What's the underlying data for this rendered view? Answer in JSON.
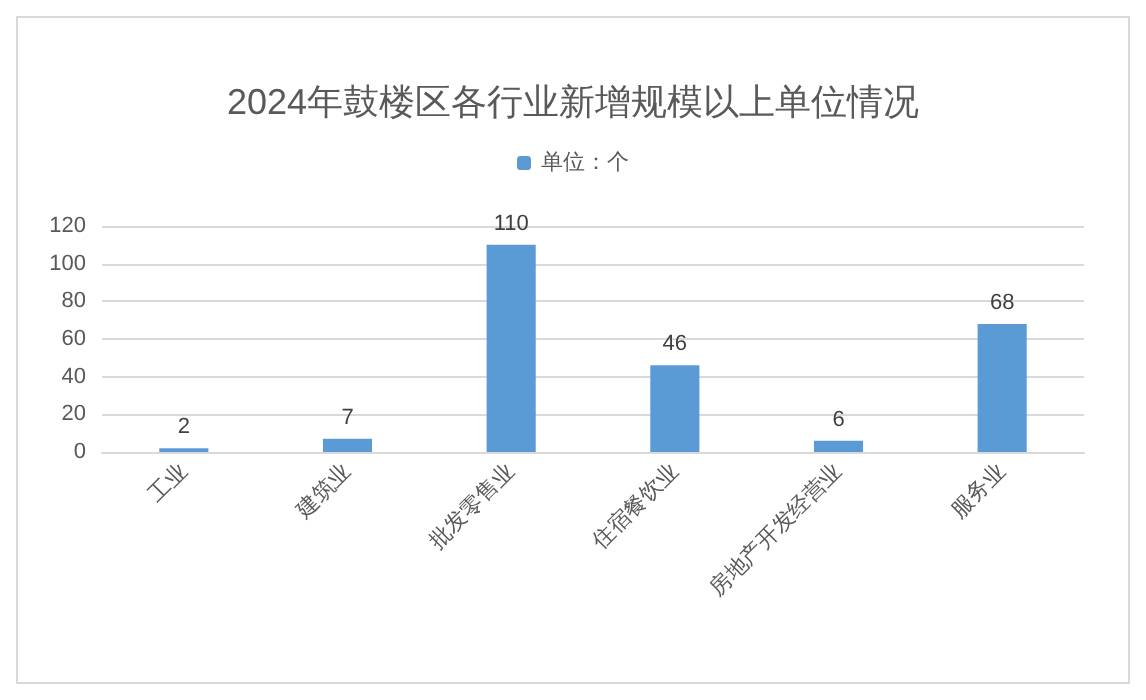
{
  "chart_data": {
    "type": "bar",
    "title": "2024年鼓楼区各行业新增规模以上单位情况",
    "categories": [
      "工业",
      "建筑业",
      "批发零售业",
      "住宿餐饮业",
      "房地产开发经营业",
      "服务业"
    ],
    "series": [
      {
        "name": "单位：个",
        "color": "#5b9bd5",
        "values": [
          2,
          7,
          110,
          46,
          6,
          68
        ]
      }
    ],
    "ylim": [
      0,
      120
    ],
    "yticks": [
      0,
      20,
      40,
      60,
      80,
      100,
      120
    ],
    "grid": "y",
    "legend": "top",
    "data_labels": true
  }
}
